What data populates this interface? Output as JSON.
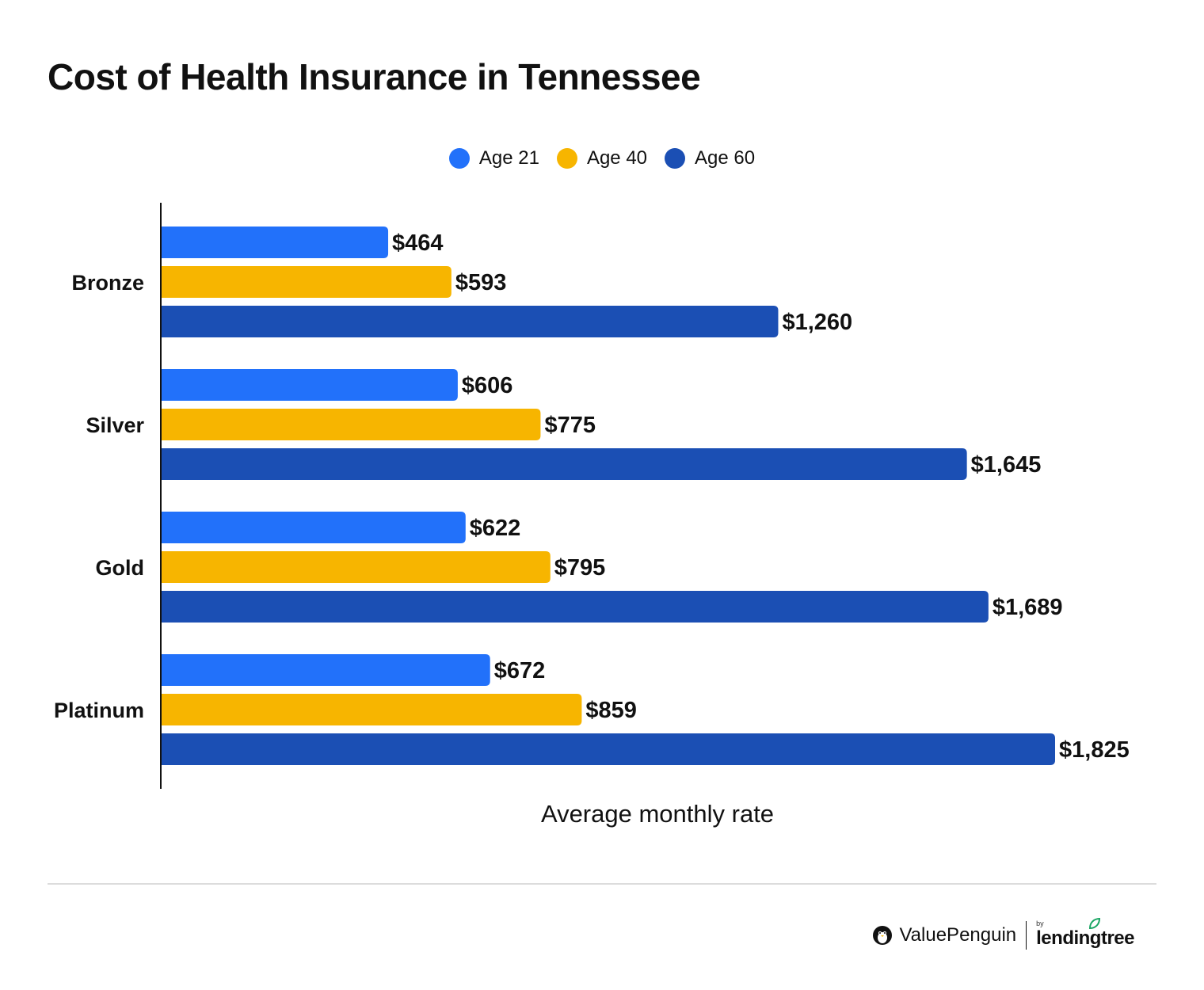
{
  "title": "Cost of Health Insurance in Tennessee",
  "colors": {
    "age21": "#2271fa",
    "age40": "#f7b500",
    "age60": "#1b4fb4"
  },
  "legend": [
    {
      "label": "Age 21",
      "color": "#2271fa"
    },
    {
      "label": "Age 40",
      "color": "#f7b500"
    },
    {
      "label": "Age 60",
      "color": "#1b4fb4"
    }
  ],
  "chart_data": {
    "type": "bar",
    "orientation": "horizontal",
    "title": "Cost of Health Insurance in Tennessee",
    "xlabel": "Average monthly rate",
    "ylabel": "",
    "categories": [
      "Bronze",
      "Silver",
      "Gold",
      "Platinum"
    ],
    "series": [
      {
        "name": "Age 21",
        "values": [
          464,
          606,
          622,
          672
        ],
        "labels": [
          "$464",
          "$606",
          "$622",
          "$672"
        ]
      },
      {
        "name": "Age 40",
        "values": [
          593,
          775,
          795,
          859
        ],
        "labels": [
          "$593",
          "$775",
          "$795",
          "$859"
        ]
      },
      {
        "name": "Age 60",
        "values": [
          1260,
          1645,
          1689,
          1825
        ],
        "labels": [
          "$1,260",
          "$1,645",
          "$1,689",
          "$1,825"
        ]
      }
    ],
    "xlim": [
      0,
      1825
    ],
    "grid": false,
    "legend_position": "top-center"
  },
  "footer": {
    "brand_name": "ValuePenguin",
    "by_label": "by",
    "partner_name": "lendingtree"
  }
}
